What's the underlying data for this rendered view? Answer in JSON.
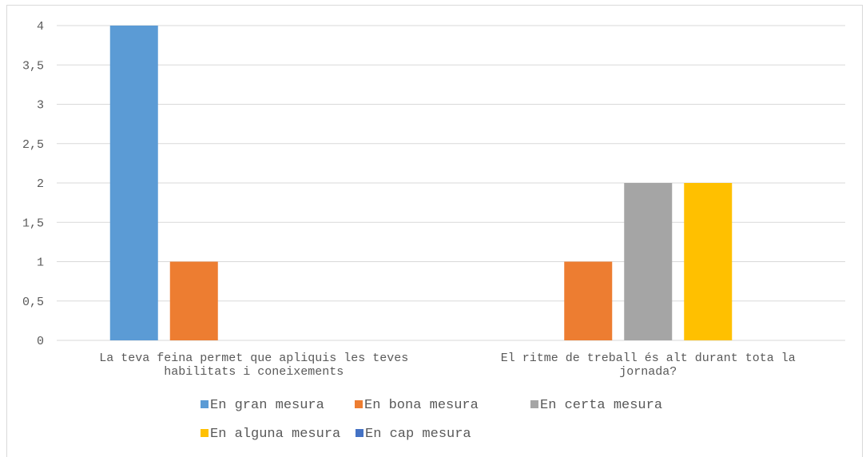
{
  "chart_data": {
    "type": "bar",
    "categories": [
      [
        "La teva feina permet que apliquis les teves",
        "habilitats i coneixements"
      ],
      [
        "El ritme de treball és alt durant tota la",
        "jornada?"
      ]
    ],
    "series": [
      {
        "name": "En gran mesura",
        "color": "#5b9bd5",
        "values": [
          4,
          0
        ]
      },
      {
        "name": "En bona mesura",
        "color": "#ed7d31",
        "values": [
          1,
          1
        ]
      },
      {
        "name": "En certa mesura",
        "color": "#a5a5a5",
        "values": [
          0,
          2
        ]
      },
      {
        "name": "En alguna mesura",
        "color": "#ffc000",
        "values": [
          0,
          2
        ]
      },
      {
        "name": "En cap mesura",
        "color": "#4472c4",
        "values": [
          0,
          0
        ]
      }
    ],
    "yticks": [
      "0",
      "0,5",
      "1",
      "1,5",
      "2",
      "2,5",
      "3",
      "3,5",
      "4"
    ],
    "ylim": [
      0,
      4
    ],
    "grid": true,
    "legend_position": "bottom"
  }
}
